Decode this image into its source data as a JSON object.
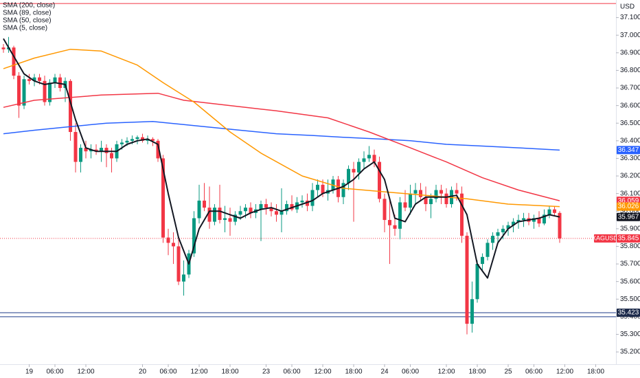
{
  "chart_data": {
    "type": "candlestick",
    "currency": "USD",
    "up_color": "#089981",
    "down_color": "#f23645",
    "xlim": [
      -0.67,
      118.93
    ],
    "xticks": [
      {
        "value": 5,
        "label": "19"
      },
      {
        "value": 10,
        "label": "06:00"
      },
      {
        "value": 16,
        "label": "12:00"
      },
      {
        "value": 27,
        "label": "20"
      },
      {
        "value": 32,
        "label": "06:00"
      },
      {
        "value": 38,
        "label": "12:00"
      },
      {
        "value": 44,
        "label": "18:00"
      },
      {
        "value": 51,
        "label": "23"
      },
      {
        "value": 56,
        "label": "06:00"
      },
      {
        "value": 62,
        "label": "12:00"
      },
      {
        "value": 68,
        "label": "18:00"
      },
      {
        "value": 74,
        "label": "24"
      },
      {
        "value": 79,
        "label": "06:00"
      },
      {
        "value": 86,
        "label": "12:00"
      },
      {
        "value": 92,
        "label": "18:00"
      },
      {
        "value": 98,
        "label": "25"
      },
      {
        "value": 103,
        "label": "06:00"
      },
      {
        "value": 109,
        "label": "12:00"
      },
      {
        "value": 115,
        "label": "18:00"
      }
    ],
    "ylim": [
      35.13,
      37.2
    ],
    "yticks": [
      {
        "value": 35.2,
        "label": "35.200"
      },
      {
        "value": 35.3,
        "label": "35.300"
      },
      {
        "value": 35.4,
        "label": "35.400"
      },
      {
        "value": 35.5,
        "label": "35.500"
      },
      {
        "value": 35.6,
        "label": "35.600"
      },
      {
        "value": 35.7,
        "label": "35.700"
      },
      {
        "value": 35.8,
        "label": "35.800"
      },
      {
        "value": 35.9,
        "label": "35.900"
      },
      {
        "value": 36.0,
        "label": "36.000"
      },
      {
        "value": 36.1,
        "label": "36.100"
      },
      {
        "value": 36.2,
        "label": "36.200"
      },
      {
        "value": 36.3,
        "label": "36.300"
      },
      {
        "value": 36.4,
        "label": "36.400"
      },
      {
        "value": 36.5,
        "label": "36.500"
      },
      {
        "value": 36.6,
        "label": "36.600"
      },
      {
        "value": 36.7,
        "label": "36.700"
      },
      {
        "value": 36.8,
        "label": "36.800"
      },
      {
        "value": 36.9,
        "label": "36.900"
      },
      {
        "value": 37.0,
        "label": "37.000"
      },
      {
        "value": 37.1,
        "label": "37.100"
      }
    ],
    "grid": false,
    "candles": {
      "open": [
        36.93,
        36.92,
        36.93,
        36.77,
        36.6,
        36.75,
        36.74,
        36.76,
        36.74,
        36.62,
        36.73,
        36.76,
        36.7,
        36.74,
        36.45,
        36.28,
        36.36,
        36.34,
        36.35,
        36.34,
        36.36,
        36.33,
        36.3,
        36.38,
        36.39,
        36.4,
        36.41,
        36.42,
        36.4,
        36.41,
        36.4,
        36.3,
        35.85,
        35.82,
        35.8,
        35.6,
        35.64,
        35.76,
        35.96,
        36.06,
        36.02,
        35.94,
        36.02,
        35.95,
        35.96,
        35.94,
        35.98,
        36.0,
        36.02,
        35.99,
        36.01,
        36.04,
        36.02,
        36.0,
        35.98,
        36.0,
        36.04,
        36.01,
        36.05,
        36.06,
        36.03,
        36.12,
        36.15,
        36.1,
        36.12,
        36.18,
        36.08,
        36.16,
        36.24,
        36.22,
        36.28,
        36.3,
        36.32,
        36.28,
        36.07,
        35.95,
        35.92,
        35.9,
        36.05,
        36.02,
        36.1,
        36.12,
        36.08,
        36.04,
        36.07,
        36.12,
        36.1,
        36.04,
        36.12,
        36.1,
        35.86,
        35.36,
        35.5,
        35.7,
        35.74,
        35.82,
        35.86,
        35.88,
        35.9,
        35.92,
        35.94,
        35.95,
        35.96,
        35.94,
        35.96,
        35.93,
        35.98,
        36.01,
        35.99
      ],
      "high": [
        36.95,
        36.99,
        36.94,
        36.79,
        36.77,
        36.78,
        36.78,
        36.78,
        36.77,
        36.75,
        36.78,
        36.78,
        36.76,
        36.75,
        36.5,
        36.38,
        36.4,
        36.38,
        36.38,
        36.4,
        36.38,
        36.36,
        36.4,
        36.41,
        36.42,
        36.43,
        36.43,
        36.44,
        36.43,
        36.42,
        36.41,
        36.32,
        35.9,
        35.88,
        35.84,
        35.72,
        35.78,
        36.0,
        36.15,
        36.16,
        36.14,
        36.04,
        36.15,
        36.03,
        36.02,
        36.0,
        36.03,
        36.04,
        36.05,
        36.04,
        36.06,
        36.07,
        36.05,
        36.04,
        36.13,
        36.06,
        36.09,
        36.08,
        36.09,
        36.1,
        36.16,
        36.18,
        36.18,
        36.18,
        36.2,
        36.2,
        36.18,
        36.26,
        36.28,
        36.3,
        36.34,
        36.37,
        36.35,
        36.31,
        36.1,
        36.06,
        35.98,
        36.08,
        36.12,
        36.15,
        36.16,
        36.16,
        36.14,
        36.1,
        36.15,
        36.15,
        36.13,
        36.14,
        36.16,
        36.14,
        35.88,
        35.6,
        35.72,
        35.76,
        35.84,
        35.88,
        35.9,
        35.92,
        35.94,
        35.96,
        35.98,
        35.99,
        35.99,
        35.98,
        36.0,
        36.01,
        36.03,
        36.03,
        36.0
      ],
      "low": [
        36.9,
        36.9,
        36.75,
        36.53,
        36.58,
        36.72,
        36.71,
        36.72,
        36.6,
        36.6,
        36.7,
        36.68,
        36.62,
        36.4,
        36.22,
        36.22,
        36.3,
        36.3,
        36.32,
        36.28,
        36.25,
        36.22,
        36.28,
        36.35,
        36.37,
        36.38,
        36.38,
        36.39,
        36.38,
        36.37,
        36.28,
        35.82,
        35.75,
        35.7,
        35.58,
        35.52,
        35.62,
        35.74,
        35.93,
        36.0,
        35.9,
        35.92,
        35.93,
        35.88,
        35.86,
        35.92,
        35.95,
        35.96,
        35.96,
        35.96,
        35.83,
        35.98,
        35.97,
        35.94,
        35.88,
        35.98,
        36.0,
        35.99,
        36.02,
        36.0,
        36.0,
        36.08,
        36.08,
        36.06,
        36.1,
        36.05,
        36.04,
        36.12,
        35.94,
        36.18,
        36.24,
        36.28,
        36.25,
        36.05,
        35.88,
        35.7,
        35.86,
        35.84,
        36.0,
        35.98,
        36.04,
        36.06,
        36.0,
        35.96,
        36.05,
        36.04,
        36.02,
        36.02,
        36.06,
        35.82,
        35.3,
        35.31,
        35.48,
        35.66,
        35.72,
        35.78,
        35.82,
        35.84,
        35.86,
        35.88,
        35.9,
        35.91,
        35.92,
        35.9,
        35.91,
        35.92,
        35.96,
        35.97,
        35.82
      ],
      "close": [
        36.92,
        36.93,
        36.77,
        36.6,
        36.75,
        36.74,
        36.76,
        36.74,
        36.62,
        36.73,
        36.76,
        36.7,
        36.74,
        36.45,
        36.28,
        36.36,
        36.34,
        36.35,
        36.34,
        36.36,
        36.33,
        36.3,
        36.38,
        36.39,
        36.4,
        36.41,
        36.42,
        36.4,
        36.41,
        36.4,
        36.3,
        35.85,
        35.82,
        35.8,
        35.6,
        35.64,
        35.76,
        35.96,
        36.06,
        36.02,
        35.94,
        36.02,
        35.95,
        35.96,
        35.94,
        35.98,
        36.0,
        36.02,
        35.99,
        36.01,
        36.04,
        36.02,
        36.0,
        35.98,
        36.0,
        36.04,
        36.01,
        36.05,
        36.06,
        36.03,
        36.12,
        36.15,
        36.1,
        36.12,
        36.18,
        36.08,
        36.16,
        36.24,
        36.22,
        36.28,
        36.3,
        36.32,
        36.28,
        36.07,
        35.95,
        35.92,
        35.9,
        36.05,
        36.02,
        36.1,
        36.12,
        36.08,
        36.04,
        36.07,
        36.12,
        36.1,
        36.04,
        36.12,
        36.1,
        35.86,
        35.36,
        35.5,
        35.7,
        35.74,
        35.82,
        35.86,
        35.88,
        35.9,
        35.92,
        35.94,
        35.95,
        35.96,
        35.94,
        35.96,
        35.93,
        35.98,
        36.01,
        35.99,
        35.845
      ]
    },
    "series": [
      {
        "name": "SMA (200, close)",
        "color": "#2962ff",
        "x": [
          0,
          6,
          13,
          20,
          29,
          39,
          46,
          53,
          60,
          66,
          73,
          79,
          86,
          93,
          100,
          108
        ],
        "values": [
          36.44,
          36.46,
          36.48,
          36.5,
          36.51,
          36.48,
          36.46,
          36.44,
          36.43,
          36.42,
          36.41,
          36.4,
          36.38,
          36.37,
          36.36,
          36.347
        ]
      },
      {
        "name": "SMA (89, close)",
        "color": "#f23645",
        "x": [
          0,
          6,
          19,
          30,
          35,
          44,
          53,
          63,
          71,
          79,
          86,
          93,
          100,
          108
        ],
        "values": [
          36.59,
          36.63,
          36.66,
          36.67,
          36.63,
          36.6,
          36.57,
          36.53,
          36.45,
          36.36,
          36.28,
          36.19,
          36.12,
          36.059
        ]
      },
      {
        "name": "SMA (50, close)",
        "color": "#ff9800",
        "x": [
          0,
          6,
          13,
          19,
          26,
          31,
          37,
          44,
          50,
          58,
          66,
          74,
          82,
          90,
          98,
          108
        ],
        "values": [
          36.81,
          36.87,
          36.92,
          36.91,
          36.83,
          36.73,
          36.62,
          36.45,
          36.33,
          36.2,
          36.13,
          36.11,
          36.09,
          36.07,
          36.04,
          36.026
        ]
      },
      {
        "name": "SMA (5, close)",
        "color": "#131722",
        "x": [
          0,
          2,
          4,
          6,
          8,
          10,
          12,
          14,
          16,
          18,
          20,
          22,
          24,
          26,
          28,
          30,
          32,
          34,
          36,
          38,
          40,
          42,
          44,
          46,
          48,
          50,
          52,
          54,
          56,
          58,
          60,
          62,
          64,
          66,
          68,
          70,
          72,
          74,
          76,
          78,
          80,
          82,
          84,
          86,
          88,
          90,
          92,
          94,
          96,
          98,
          100,
          102,
          104,
          106,
          108
        ],
        "values": [
          36.98,
          36.88,
          36.78,
          36.74,
          36.72,
          36.73,
          36.72,
          36.52,
          36.36,
          36.34,
          36.34,
          36.34,
          36.38,
          36.4,
          36.41,
          36.38,
          36.1,
          35.85,
          35.7,
          35.9,
          36.0,
          36.0,
          35.98,
          35.96,
          35.99,
          36.01,
          36.02,
          36.0,
          36.02,
          36.04,
          36.06,
          36.1,
          36.12,
          36.14,
          36.18,
          36.24,
          36.28,
          36.18,
          35.96,
          35.94,
          36.04,
          36.08,
          36.08,
          36.08,
          36.09,
          35.98,
          35.7,
          35.62,
          35.82,
          35.9,
          35.94,
          35.95,
          35.96,
          35.98,
          35.967
        ]
      }
    ],
    "hlines": [
      {
        "value": 37.18,
        "color": "#f23645"
      },
      {
        "value": 35.423,
        "color": "#1e3a8a"
      },
      {
        "value": 35.4,
        "color": "#1e3a8a"
      }
    ],
    "last_price": {
      "name": "XAGUSD",
      "value": 35.845,
      "color": "#f23645"
    },
    "price_labels": [
      {
        "value": 36.347,
        "color": "#2962ff"
      },
      {
        "value": 36.059,
        "color": "#f23645"
      },
      {
        "value": 36.026,
        "color": "#ff9800"
      },
      {
        "value": 35.967,
        "color": "#131722"
      },
      {
        "value": 35.423,
        "color": "#1c2a4a"
      }
    ]
  }
}
